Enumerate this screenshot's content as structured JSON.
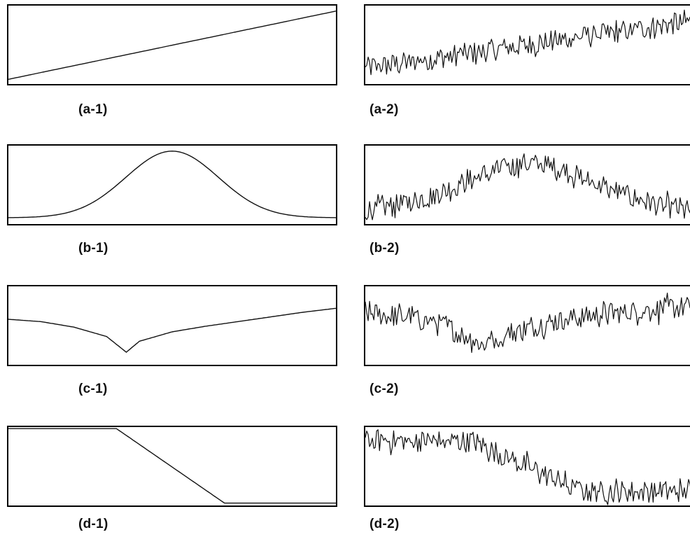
{
  "chart_data": [
    {
      "id": "a-1",
      "type": "line",
      "label": "(a-1)",
      "noise": 0,
      "shape": "linear",
      "x": [
        0,
        1
      ],
      "y": [
        0.06,
        0.93
      ],
      "ylim": [
        0,
        1
      ],
      "grid": false
    },
    {
      "id": "a-2",
      "type": "line",
      "label": "(a-2)",
      "noise": 0.14,
      "shape": "linear",
      "x": [
        0,
        1
      ],
      "y": [
        0.2,
        0.8
      ],
      "ylim": [
        0,
        1
      ],
      "grid": false
    },
    {
      "id": "b-1",
      "type": "line",
      "label": "(b-1)",
      "noise": 0,
      "shape": "gaussian",
      "x": [
        0,
        0.1,
        0.2,
        0.3,
        0.4,
        0.5,
        0.6,
        0.7,
        0.8,
        0.9,
        1.0
      ],
      "y": [
        0.09,
        0.16,
        0.3,
        0.52,
        0.78,
        0.93,
        0.79,
        0.54,
        0.31,
        0.16,
        0.09
      ],
      "ylim": [
        0,
        1
      ],
      "grid": false
    },
    {
      "id": "b-2",
      "type": "line",
      "label": "(b-2)",
      "noise": 0.14,
      "shape": "gaussian",
      "x": [
        0,
        0.1,
        0.2,
        0.3,
        0.4,
        0.5,
        0.6,
        0.7,
        0.8,
        0.9,
        1.0
      ],
      "y": [
        0.18,
        0.24,
        0.36,
        0.52,
        0.68,
        0.78,
        0.7,
        0.52,
        0.36,
        0.24,
        0.16
      ],
      "ylim": [
        0,
        1
      ],
      "grid": false
    },
    {
      "id": "c-1",
      "type": "line",
      "label": "(c-1)",
      "noise": 0,
      "shape": "cusp",
      "x": [
        0,
        0.1,
        0.2,
        0.3,
        0.36,
        0.4,
        0.5,
        0.6,
        0.7,
        0.8,
        0.9,
        1.0
      ],
      "y": [
        0.58,
        0.55,
        0.48,
        0.36,
        0.16,
        0.3,
        0.42,
        0.49,
        0.55,
        0.61,
        0.67,
        0.72
      ],
      "ylim": [
        0,
        1
      ],
      "grid": false
    },
    {
      "id": "c-2",
      "type": "line",
      "label": "(c-2)",
      "noise": 0.14,
      "shape": "cusp",
      "x": [
        0,
        0.15,
        0.25,
        0.36,
        0.45,
        0.6,
        0.8,
        1.0
      ],
      "y": [
        0.66,
        0.6,
        0.48,
        0.26,
        0.42,
        0.58,
        0.68,
        0.74
      ],
      "ylim": [
        0,
        1
      ],
      "grid": false
    },
    {
      "id": "d-1",
      "type": "line",
      "label": "(d-1)",
      "noise": 0,
      "shape": "ramp",
      "x": [
        0,
        0.33,
        0.66,
        1.0
      ],
      "y": [
        0.98,
        0.98,
        0.03,
        0.03
      ],
      "ylim": [
        0,
        1
      ],
      "grid": false
    },
    {
      "id": "d-2",
      "type": "line",
      "label": "(d-2)",
      "noise": 0.14,
      "shape": "ramp",
      "x": [
        0,
        0.33,
        0.66,
        1.0
      ],
      "y": [
        0.82,
        0.82,
        0.18,
        0.18
      ],
      "ylim": [
        0,
        1
      ],
      "grid": false
    }
  ]
}
